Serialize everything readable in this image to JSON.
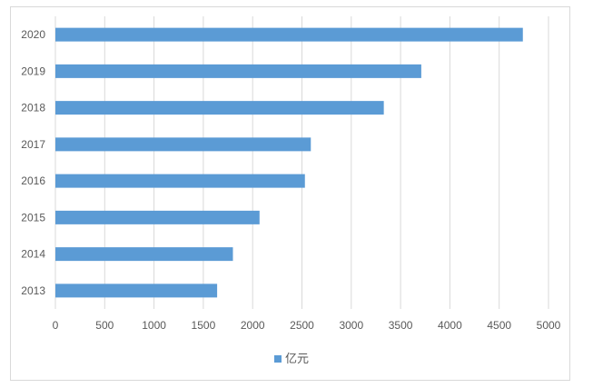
{
  "chart_data": {
    "type": "bar",
    "orientation": "horizontal",
    "categories": [
      "2013",
      "2014",
      "2015",
      "2016",
      "2017",
      "2018",
      "2019",
      "2020"
    ],
    "series": [
      {
        "name": "亿元",
        "values": [
          1640,
          1800,
          2070,
          2530,
          2590,
          3330,
          3710,
          4740
        ]
      }
    ],
    "xlim": [
      0,
      5000
    ],
    "x_ticks": [
      "0",
      "500",
      "1000",
      "1500",
      "2000",
      "2500",
      "3000",
      "3500",
      "4000",
      "4500",
      "5000"
    ],
    "grid": "vertical",
    "legend_position": "bottom",
    "colors": {
      "bar": "#5b9bd5",
      "grid": "#d9d9d9",
      "text": "#595959"
    }
  }
}
